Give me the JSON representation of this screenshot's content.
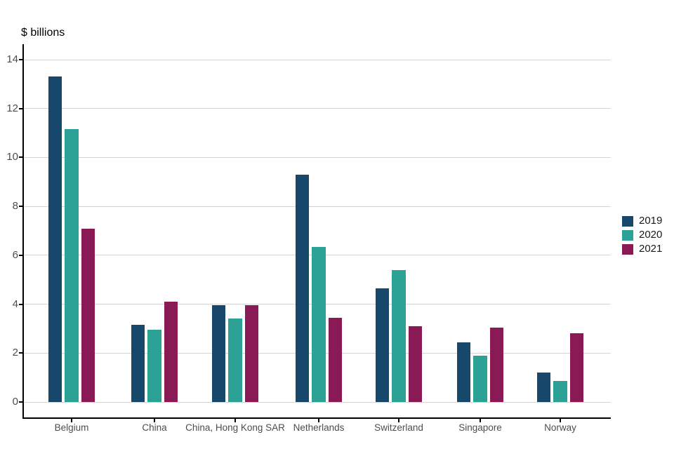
{
  "chart_data": {
    "type": "bar",
    "ylabel": "$ billions",
    "categories": [
      "Belgium",
      "China",
      "China, Hong Kong SAR",
      "Netherlands",
      "Switzerland",
      "Singapore",
      "Norway"
    ],
    "series": [
      {
        "name": "2019",
        "color": "#17476B",
        "values": [
          13.3,
          3.15,
          3.95,
          9.3,
          4.65,
          2.45,
          1.2
        ]
      },
      {
        "name": "2020",
        "color": "#2BA295",
        "values": [
          11.15,
          2.95,
          3.4,
          6.35,
          5.4,
          1.9,
          0.85
        ]
      },
      {
        "name": "2021",
        "color": "#8A1A55",
        "values": [
          7.1,
          4.1,
          3.95,
          3.45,
          3.1,
          3.05,
          2.8
        ]
      }
    ],
    "y_ticks": [
      0,
      2,
      4,
      6,
      8,
      10,
      12,
      14
    ],
    "ylim": [
      0,
      14
    ],
    "grid": "horizontal-only",
    "legend_position": "right"
  },
  "colors": {
    "background": "#ffffff",
    "gridline": "#d4d4d4",
    "axis": "#000000",
    "tick_label": "#4d4d4d",
    "legend_text": "#1a1a1a"
  }
}
